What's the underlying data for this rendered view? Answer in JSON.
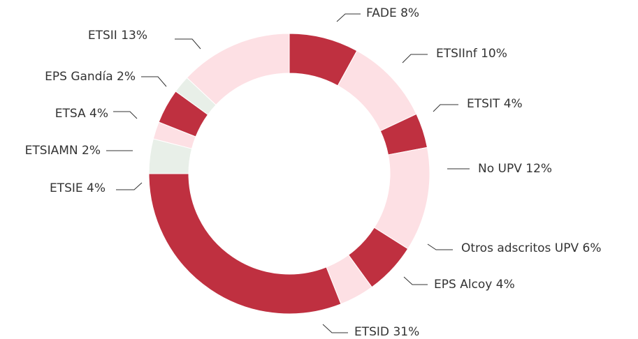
{
  "chart_data": {
    "type": "donut",
    "categories": [
      "FADE",
      "ETSIInf",
      "ETSIT",
      "No UPV",
      "Otros adscritos UPV",
      "EPS Alcoy",
      "ETSID",
      "ETSIE",
      "ETSIAMN",
      "ETSA",
      "EPS Gandía",
      "ETSII"
    ],
    "values": [
      8,
      10,
      4,
      12,
      6,
      4,
      31,
      4,
      2,
      4,
      2,
      13
    ],
    "value_labels": [
      "8%",
      "10%",
      "4%",
      "12%",
      "6%",
      "4%",
      "31%",
      "4%",
      "2%",
      "4%",
      "2%",
      "13%"
    ],
    "colors": [
      "#bf3040",
      "#fde0e4",
      "#bf3040",
      "#fde0e4",
      "#bf3040",
      "#fde0e4",
      "#bf3040",
      "#e8efe8",
      "#fde0e4",
      "#bf3040",
      "#e8efe8",
      "#fde0e4"
    ]
  }
}
